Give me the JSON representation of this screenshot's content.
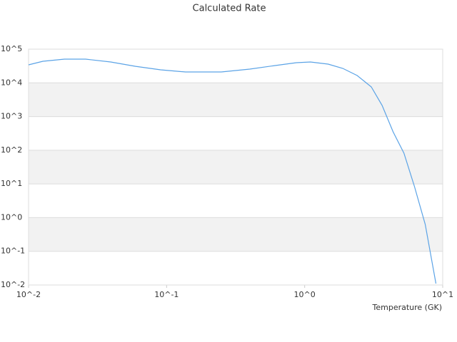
{
  "chart_data": {
    "type": "line",
    "title": "Calculated Rate",
    "x_label": "Temperature (GK)",
    "x": [
      0.01,
      0.0127,
      0.0182,
      0.0259,
      0.0394,
      0.0596,
      0.0905,
      0.137,
      0.249,
      0.4,
      0.61,
      0.87,
      1.1,
      1.48,
      1.89,
      2.4,
      3.04,
      3.64,
      4.37,
      5.24,
      6.25,
      7.47,
      8.93
    ],
    "series": [
      {
        "color": "#5ba3e6",
        "values": [
          34300,
          43700,
          50600,
          50600,
          41700,
          31000,
          24400,
          21000,
          21000,
          25600,
          32700,
          39600,
          41700,
          36000,
          26800,
          16500,
          7570,
          2140,
          353,
          81.8,
          8.3,
          0.63,
          0.011
        ]
      }
    ],
    "xlim": [
      0.01,
      10
    ],
    "ylim": [
      0.01,
      100000
    ],
    "xscale": "log",
    "yscale": "log",
    "grid": true,
    "xticks": [
      {
        "value": 0.01,
        "label": "10^-2"
      },
      {
        "value": 0.1,
        "label": "10^-1"
      },
      {
        "value": 1,
        "label": "10^0"
      },
      {
        "value": 10,
        "label": "10^1"
      }
    ],
    "yticks": [
      {
        "value": 0.01,
        "label": "10^-2"
      },
      {
        "value": 0.1,
        "label": "10^-1"
      },
      {
        "value": 1,
        "label": "10^0"
      },
      {
        "value": 10,
        "label": "10^1"
      },
      {
        "value": 100,
        "label": "10^2"
      },
      {
        "value": 1000,
        "label": "10^3"
      },
      {
        "value": 10000,
        "label": "10^4"
      },
      {
        "value": 100000,
        "label": "10^5"
      }
    ]
  }
}
